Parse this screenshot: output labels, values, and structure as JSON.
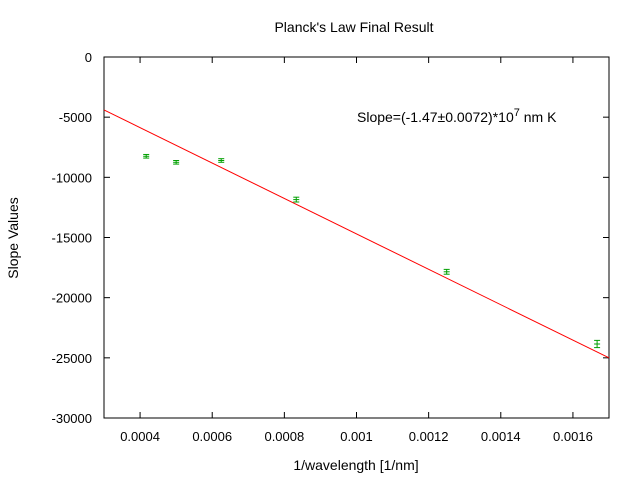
{
  "chart_data": {
    "type": "scatter",
    "title": "Planck's Law Final Result",
    "xlabel": "1/wavelength [1/nm]",
    "ylabel": "Slope Values",
    "xlim": [
      0.0003,
      0.0017
    ],
    "ylim": [
      -30000,
      0
    ],
    "x_ticks": [
      0.0004,
      0.0006,
      0.0008,
      0.001,
      0.0012,
      0.0014,
      0.0016
    ],
    "x_tick_labels": [
      "0.0004",
      "0.0006",
      "0.0008",
      "0.001",
      "0.0012",
      "0.0014",
      "0.0016"
    ],
    "y_ticks": [
      0,
      -5000,
      -10000,
      -15000,
      -20000,
      -25000,
      -30000
    ],
    "y_tick_labels": [
      "0",
      "-5000",
      "-10000",
      "-15000",
      "-20000",
      "-25000",
      "-30000"
    ],
    "grid": false,
    "points": [
      {
        "x": 0.000417,
        "y": -8250,
        "err": 150
      },
      {
        "x": 0.0005,
        "y": -8750,
        "err": 150
      },
      {
        "x": 0.000625,
        "y": -8600,
        "err": 150
      },
      {
        "x": 0.000833,
        "y": -11850,
        "err": 200
      },
      {
        "x": 0.00125,
        "y": -17850,
        "err": 200
      },
      {
        "x": 0.001667,
        "y": -23850,
        "err": 300
      }
    ],
    "fit_line": {
      "x": [
        0.0003,
        0.0017
      ],
      "y": [
        -4400,
        -25000
      ]
    },
    "annotation": {
      "text": "Slope=(-1.47±0.0072)*10",
      "superscript": "7",
      "suffix": " nm K"
    },
    "colors": {
      "points": "#00a000",
      "fit": "#ff0000",
      "axes": "#000000"
    }
  }
}
